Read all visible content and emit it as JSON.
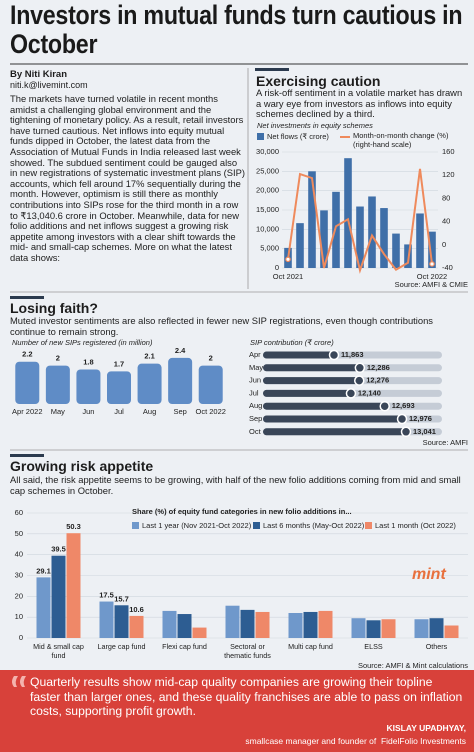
{
  "title": "Investors in mutual funds turn cautious in October",
  "byline": "By Niti Kiran",
  "email": "niti.k@livemint.com",
  "body": "The markets have turned volatile in recent months amidst a challenging global environment and the tightening of monetary policy. As a result, retail investors have turned cautious. Net inflows into equity mutual funds dipped in October, the latest data from the Association of Mutual Funds in India released last week showed. The subdued sentiment could be gauged also in new registrations of systematic investment plans (SIP) accounts, which fell around 17% sequentially during the month. However, optimism is still there as monthly contributions into SIPs rose for the third month in a row to ₹13,040.6 crore in October. Meanwhile, data for new folio additions and net inflows suggest a growing risk appetite among investors with a clear shift towards the mid- and small-cap schemes. More on what the latest data shows:",
  "sections": [
    {
      "heading": "Exercising caution",
      "text": "A risk-off sentiment in a volatile market has drawn a wary eye from investors as inflows into equity schemes declined by a third."
    },
    {
      "heading": "Losing faith?",
      "text": "Muted investor sentiments are also reflected in fewer new SIP registrations, even though contributions continue to remain strong."
    },
    {
      "heading": "Growing risk appetite",
      "text": "All said, the risk appetite seems to be growing, with half of the new folio additions coming from mid and small cap schemes in October."
    }
  ],
  "chart_data": [
    {
      "type": "bar_line",
      "subtitle": "Net investments in equity schemes",
      "categories": [
        "Oct 2021",
        null,
        null,
        null,
        null,
        null,
        null,
        null,
        null,
        null,
        null,
        null,
        "Oct 2022"
      ],
      "series": [
        {
          "name": "Net flows (₹ crore)",
          "color": "#3f6fa8",
          "type": "bar",
          "values": [
            5200,
            11600,
            25000,
            14900,
            19700,
            28400,
            15900,
            18500,
            15500,
            8900,
            6100,
            14100,
            9400
          ]
        },
        {
          "name": "Month-on-month change (%) (right-hand scale)",
          "color": "#ef8a5c",
          "type": "line",
          "axis": "y2",
          "values": [
            -25,
            122,
            115,
            -40,
            32,
            44,
            -44,
            16,
            -16,
            -43,
            -31,
            131,
            -33
          ]
        }
      ],
      "ylim": [
        0,
        30000
      ],
      "yticks": [
        0,
        {
          "value": 5000,
          "label": "5,000"
        },
        {
          "value": 10000,
          "label": "10,000"
        },
        {
          "value": 15000,
          "label": "15,000"
        },
        {
          "value": 20000,
          "label": "20,000"
        },
        {
          "value": 25000,
          "label": "25,000"
        },
        {
          "value": 30000,
          "label": "30,000"
        }
      ],
      "y2lim": [
        -40,
        160
      ],
      "y2ticks": [
        -40,
        0,
        40,
        80,
        120,
        160
      ],
      "grid": true,
      "source": "Source: AMFI & CMIE"
    },
    {
      "type": "bar",
      "subtitle": "Number of new SIPs registered (in million)",
      "categories": [
        "Apr 2022",
        "May",
        "Jun",
        "Jul",
        "Aug",
        "Sep",
        "Oct 2022"
      ],
      "values": [
        2.2,
        2,
        1.8,
        1.7,
        2.1,
        2.4,
        2
      ],
      "color": "#5f8cc6"
    },
    {
      "type": "lollipop",
      "subtitle": "SIP contribution (₹ crore)",
      "categories": [
        "Apr",
        "May",
        "Jun",
        "Jul",
        "Aug",
        "Sep",
        "Oct"
      ],
      "values": [
        11863,
        12286,
        12276,
        12140,
        12693,
        12976,
        13041
      ],
      "value_labels": [
        "11,863",
        "12,286",
        "12,276",
        "12,140",
        "12,693",
        "12,976",
        "13,041"
      ],
      "color": "#3a4658",
      "source": "Source: AMFI"
    },
    {
      "type": "grouped_bar",
      "legend_title": "Share (%) of equity fund categories in new folio additions in...",
      "categories": [
        "Mid & small cap fund",
        "Large cap fund",
        "Flexi cap fund",
        "Sectoral or thematic funds",
        "Multi cap fund",
        "ELSS",
        "Others"
      ],
      "series": [
        {
          "name": "Last 1 year (Nov 2021-Oct 2022)",
          "color": "#6f98cb",
          "values": [
            29.1,
            17.5,
            13,
            15.5,
            12,
            9.5,
            9
          ],
          "value_labels": [
            "29.1",
            "17.5",
            null,
            null,
            null,
            null,
            null
          ]
        },
        {
          "name": "Last 6 months (May-Oct 2022)",
          "color": "#2d5d92",
          "values": [
            39.5,
            15.7,
            11.5,
            13.5,
            12.5,
            8.5,
            9.5
          ],
          "value_labels": [
            "39.5",
            "15.7",
            null,
            null,
            null,
            null,
            null
          ]
        },
        {
          "name": "Last 1 month (Oct 2022)",
          "color": "#ef8868",
          "values": [
            50.3,
            10.6,
            5,
            12.5,
            13,
            9,
            6
          ],
          "value_labels": [
            "50.3",
            "10.6",
            null,
            null,
            null,
            null,
            null
          ]
        }
      ],
      "ylim": [
        0,
        60
      ],
      "yticks": [
        0,
        10,
        20,
        30,
        40,
        50,
        60
      ],
      "grid": true,
      "source": "Source: AMFI & Mint calculations"
    }
  ],
  "brand": "mint",
  "quote": {
    "text": "Quarterly results show mid-cap quality companies are growing their topline faster than larger ones, and these quality franchises are able to pass on inflation costs, supporting profit growth.",
    "author": "KISLAY UPADHYAY,",
    "role": "smallcase manager and founder of  FidelFolio Investments"
  }
}
